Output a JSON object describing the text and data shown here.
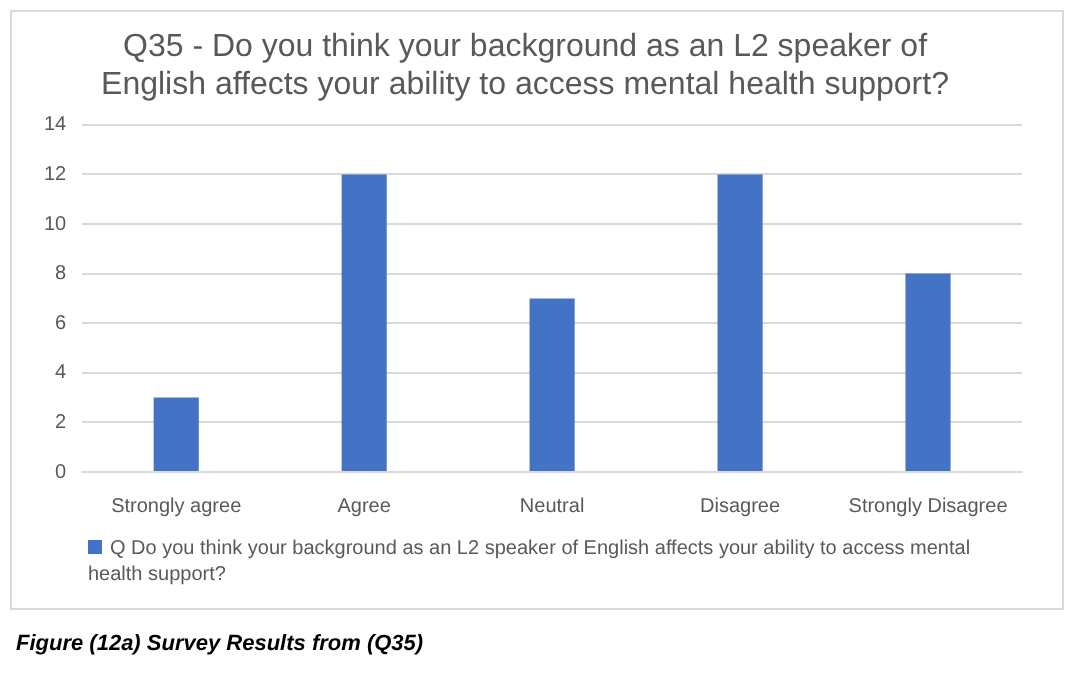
{
  "chart_data": {
    "type": "bar",
    "title": "Q35 - Do you think your background as an L2 speaker of English affects your ability to access mental health support?",
    "categories": [
      "Strongly agree",
      "Agree",
      "Neutral",
      "Disagree",
      "Strongly Disagree"
    ],
    "series": [
      {
        "name": "Q Do you think your background as an L2 speaker of English affects your ability to access mental health support?",
        "color": "#4472c4",
        "values": [
          3,
          12,
          7,
          12,
          8
        ]
      }
    ],
    "ylim": [
      0,
      14
    ],
    "yticks": [
      0,
      2,
      4,
      6,
      8,
      10,
      12,
      14
    ],
    "grid": "y",
    "legend": "bottom",
    "annotations": [
      "Figure (12a) Survey Results from (Q35)"
    ]
  }
}
